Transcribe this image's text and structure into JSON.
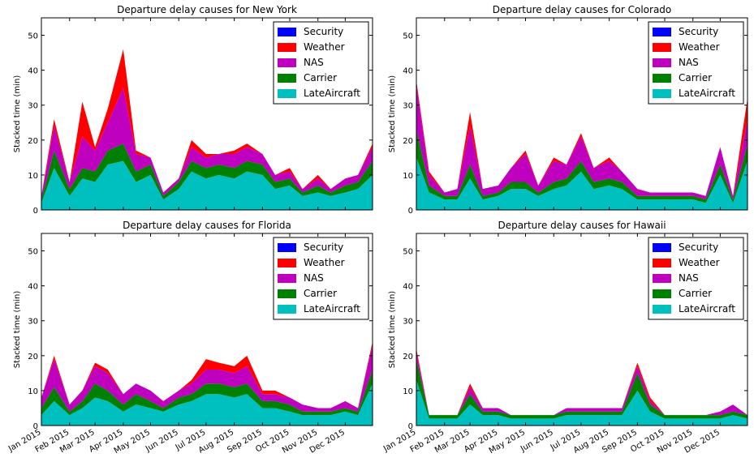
{
  "chart_data": [
    {
      "type": "area",
      "stacked": true,
      "title": "Departure delay causes for New York",
      "ylabel": "Stacked time (min)",
      "xlabel": "",
      "ylim": [
        0,
        55
      ],
      "yticks": [
        0,
        10,
        20,
        30,
        40,
        50
      ],
      "x_tick_labels": [],
      "legend_position": "top-right",
      "x": [
        "2015-01-01",
        "2015-01-15",
        "2015-02-01",
        "2015-02-15",
        "2015-03-01",
        "2015-03-15",
        "2015-04-01",
        "2015-04-15",
        "2015-05-01",
        "2015-05-15",
        "2015-06-01",
        "2015-06-15",
        "2015-07-01",
        "2015-07-15",
        "2015-08-01",
        "2015-08-15",
        "2015-09-01",
        "2015-09-15",
        "2015-10-01",
        "2015-10-15",
        "2015-11-01",
        "2015-11-15",
        "2015-12-01",
        "2015-12-15",
        "2015-12-31"
      ],
      "series": [
        {
          "name": "LateAircraft",
          "color": "#00bfbf",
          "values": [
            2,
            12,
            4,
            9,
            8,
            13,
            14,
            8,
            10,
            3,
            6,
            11,
            9,
            10,
            9,
            11,
            10,
            6,
            7,
            4,
            5,
            4,
            5,
            6,
            10
          ]
        },
        {
          "name": "Carrier",
          "color": "#008000",
          "values": [
            1,
            5,
            2,
            3,
            3,
            4,
            5,
            3,
            3,
            1,
            2,
            3,
            3,
            3,
            3,
            3,
            3,
            2,
            2,
            1,
            2,
            1,
            2,
            2,
            4
          ]
        },
        {
          "name": "NAS",
          "color": "#bf00bf",
          "values": [
            1,
            7,
            2,
            9,
            6,
            8,
            16,
            5,
            2,
            1,
            1,
            4,
            3,
            3,
            4,
            4,
            3,
            2,
            2,
            1,
            2,
            1,
            2,
            2,
            4
          ]
        },
        {
          "name": "Weather",
          "color": "#ff0000",
          "values": [
            0,
            2,
            0,
            10,
            1,
            4,
            11,
            1,
            0,
            0,
            0,
            2,
            1,
            0,
            1,
            1,
            0,
            0,
            1,
            0,
            1,
            0,
            0,
            0,
            1
          ]
        },
        {
          "name": "Security",
          "color": "#0000ff",
          "values": [
            0,
            0,
            0,
            0,
            0,
            0,
            0,
            0,
            0,
            0,
            0,
            0,
            0,
            0,
            0,
            0,
            0,
            0,
            0,
            0,
            0,
            0,
            0,
            0,
            0
          ]
        }
      ]
    },
    {
      "type": "area",
      "stacked": true,
      "title": "Departure delay causes for Colorado",
      "ylabel": "Stacked time (min)",
      "xlabel": "",
      "ylim": [
        0,
        55
      ],
      "yticks": [
        0,
        10,
        20,
        30,
        40,
        50
      ],
      "x_tick_labels": [],
      "legend_position": "top-right",
      "x": [
        "2015-01-01",
        "2015-01-15",
        "2015-02-01",
        "2015-02-15",
        "2015-03-01",
        "2015-03-15",
        "2015-04-01",
        "2015-04-15",
        "2015-05-01",
        "2015-05-15",
        "2015-06-01",
        "2015-06-15",
        "2015-07-01",
        "2015-07-15",
        "2015-08-01",
        "2015-08-15",
        "2015-09-01",
        "2015-09-15",
        "2015-10-01",
        "2015-10-15",
        "2015-11-01",
        "2015-11-15",
        "2015-12-01",
        "2015-12-15",
        "2015-12-31"
      ],
      "series": [
        {
          "name": "LateAircraft",
          "color": "#00bfbf",
          "values": [
            15,
            5,
            3,
            3,
            9,
            3,
            4,
            6,
            6,
            4,
            6,
            7,
            11,
            6,
            7,
            6,
            3,
            3,
            3,
            3,
            3,
            2,
            10,
            2,
            14
          ]
        },
        {
          "name": "Carrier",
          "color": "#008000",
          "values": [
            8,
            2,
            1,
            1,
            4,
            1,
            1,
            2,
            2,
            1,
            2,
            2,
            3,
            2,
            2,
            2,
            1,
            1,
            1,
            1,
            1,
            1,
            3,
            1,
            5
          ]
        },
        {
          "name": "NAS",
          "color": "#bf00bf",
          "values": [
            13,
            3,
            1,
            2,
            11,
            2,
            2,
            4,
            8,
            2,
            6,
            4,
            7,
            4,
            5,
            3,
            2,
            1,
            1,
            1,
            1,
            1,
            5,
            1,
            7
          ]
        },
        {
          "name": "Weather",
          "color": "#ff0000",
          "values": [
            1,
            1,
            0,
            0,
            4,
            0,
            0,
            0,
            1,
            0,
            1,
            0,
            1,
            0,
            1,
            0,
            0,
            0,
            0,
            0,
            0,
            0,
            0,
            0,
            6
          ]
        },
        {
          "name": "Security",
          "color": "#0000ff",
          "values": [
            0,
            0,
            0,
            0,
            0,
            0,
            0,
            0,
            0,
            0,
            0,
            0,
            0,
            0,
            0,
            0,
            0,
            0,
            0,
            0,
            0,
            0,
            0,
            0,
            0
          ]
        }
      ]
    },
    {
      "type": "area",
      "stacked": true,
      "title": "Departure delay causes for Florida",
      "ylabel": "Stacked time (min)",
      "xlabel": "",
      "ylim": [
        0,
        55
      ],
      "yticks": [
        0,
        10,
        20,
        30,
        40,
        50
      ],
      "x_tick_labels": [
        "Jan 2015",
        "Feb 2015",
        "Mar 2015",
        "Apr 2015",
        "May 2015",
        "Jun 2015",
        "Jul 2015",
        "Aug 2015",
        "Sep 2015",
        "Oct 2015",
        "Nov 2015",
        "Dec 2015"
      ],
      "legend_position": "top-right",
      "x": [
        "2015-01-01",
        "2015-01-15",
        "2015-02-01",
        "2015-02-15",
        "2015-03-01",
        "2015-03-15",
        "2015-04-01",
        "2015-04-15",
        "2015-05-01",
        "2015-05-15",
        "2015-06-01",
        "2015-06-15",
        "2015-07-01",
        "2015-07-15",
        "2015-08-01",
        "2015-08-15",
        "2015-09-01",
        "2015-09-15",
        "2015-10-01",
        "2015-10-15",
        "2015-11-01",
        "2015-11-15",
        "2015-12-01",
        "2015-12-15",
        "2015-12-31"
      ],
      "series": [
        {
          "name": "LateAircraft",
          "color": "#00bfbf",
          "values": [
            3,
            7,
            3,
            5,
            8,
            7,
            4,
            6,
            5,
            4,
            6,
            7,
            9,
            9,
            8,
            9,
            5,
            5,
            4,
            3,
            3,
            3,
            4,
            3,
            12
          ]
        },
        {
          "name": "Carrier",
          "color": "#008000",
          "values": [
            2,
            4,
            1,
            2,
            4,
            3,
            2,
            3,
            2,
            1,
            2,
            2,
            3,
            3,
            3,
            3,
            2,
            2,
            2,
            1,
            1,
            1,
            1,
            1,
            4
          ]
        },
        {
          "name": "NAS",
          "color": "#bf00bf",
          "values": [
            3,
            8,
            2,
            3,
            5,
            5,
            3,
            3,
            3,
            2,
            2,
            3,
            4,
            4,
            4,
            5,
            2,
            2,
            2,
            2,
            1,
            1,
            2,
            1,
            7
          ]
        },
        {
          "name": "Weather",
          "color": "#ff0000",
          "values": [
            0,
            1,
            0,
            0,
            1,
            1,
            0,
            0,
            0,
            0,
            0,
            1,
            3,
            2,
            2,
            3,
            1,
            1,
            0,
            0,
            0,
            0,
            0,
            0,
            1
          ]
        },
        {
          "name": "Security",
          "color": "#0000ff",
          "values": [
            0,
            0,
            0,
            0,
            0,
            0,
            0,
            0,
            0,
            0,
            0,
            0,
            0,
            0,
            0,
            0,
            0,
            0,
            0,
            0,
            0,
            0,
            0,
            0,
            0
          ]
        }
      ]
    },
    {
      "type": "area",
      "stacked": true,
      "title": "Departure delay causes for Hawaii",
      "ylabel": "Stacked time (min)",
      "xlabel": "",
      "ylim": [
        0,
        55
      ],
      "yticks": [
        0,
        10,
        20,
        30,
        40,
        50
      ],
      "x_tick_labels": [
        "Jan 2015",
        "Feb 2015",
        "Mar 2015",
        "Apr 2015",
        "May 2015",
        "Jun 2015",
        "Jul 2015",
        "Aug 2015",
        "Sep 2015",
        "Oct 2015",
        "Nov 2015",
        "Dec 2015"
      ],
      "legend_position": "top-right",
      "x": [
        "2015-01-01",
        "2015-01-15",
        "2015-02-01",
        "2015-02-15",
        "2015-03-01",
        "2015-03-15",
        "2015-04-01",
        "2015-04-15",
        "2015-05-01",
        "2015-05-15",
        "2015-06-01",
        "2015-06-15",
        "2015-07-01",
        "2015-07-15",
        "2015-08-01",
        "2015-08-15",
        "2015-09-01",
        "2015-09-15",
        "2015-10-01",
        "2015-10-15",
        "2015-11-01",
        "2015-11-15",
        "2015-12-01",
        "2015-12-15",
        "2015-12-31"
      ],
      "series": [
        {
          "name": "LateAircraft",
          "color": "#00bfbf",
          "values": [
            13,
            2,
            2,
            2,
            6,
            3,
            3,
            2,
            2,
            2,
            2,
            3,
            3,
            3,
            3,
            3,
            10,
            4,
            2,
            2,
            2,
            2,
            2,
            3,
            2
          ]
        },
        {
          "name": "Carrier",
          "color": "#008000",
          "values": [
            6,
            1,
            1,
            1,
            3,
            1,
            1,
            1,
            1,
            1,
            1,
            1,
            1,
            1,
            1,
            1,
            5,
            2,
            1,
            1,
            1,
            1,
            1,
            1,
            1
          ]
        },
        {
          "name": "NAS",
          "color": "#bf00bf",
          "values": [
            2,
            0,
            0,
            0,
            2,
            1,
            1,
            0,
            0,
            0,
            0,
            1,
            1,
            1,
            1,
            1,
            2,
            1,
            0,
            0,
            0,
            0,
            1,
            2,
            0
          ]
        },
        {
          "name": "Weather",
          "color": "#ff0000",
          "values": [
            1,
            0,
            0,
            0,
            1,
            0,
            0,
            0,
            0,
            0,
            0,
            0,
            0,
            0,
            0,
            0,
            1,
            1,
            0,
            0,
            0,
            0,
            0,
            0,
            0
          ]
        },
        {
          "name": "Security",
          "color": "#0000ff",
          "values": [
            0,
            0,
            0,
            0,
            0,
            0,
            0,
            0,
            0,
            0,
            0,
            0,
            0,
            0,
            0,
            0,
            0,
            0,
            0,
            0,
            0,
            0,
            0,
            0,
            0
          ]
        }
      ]
    }
  ]
}
